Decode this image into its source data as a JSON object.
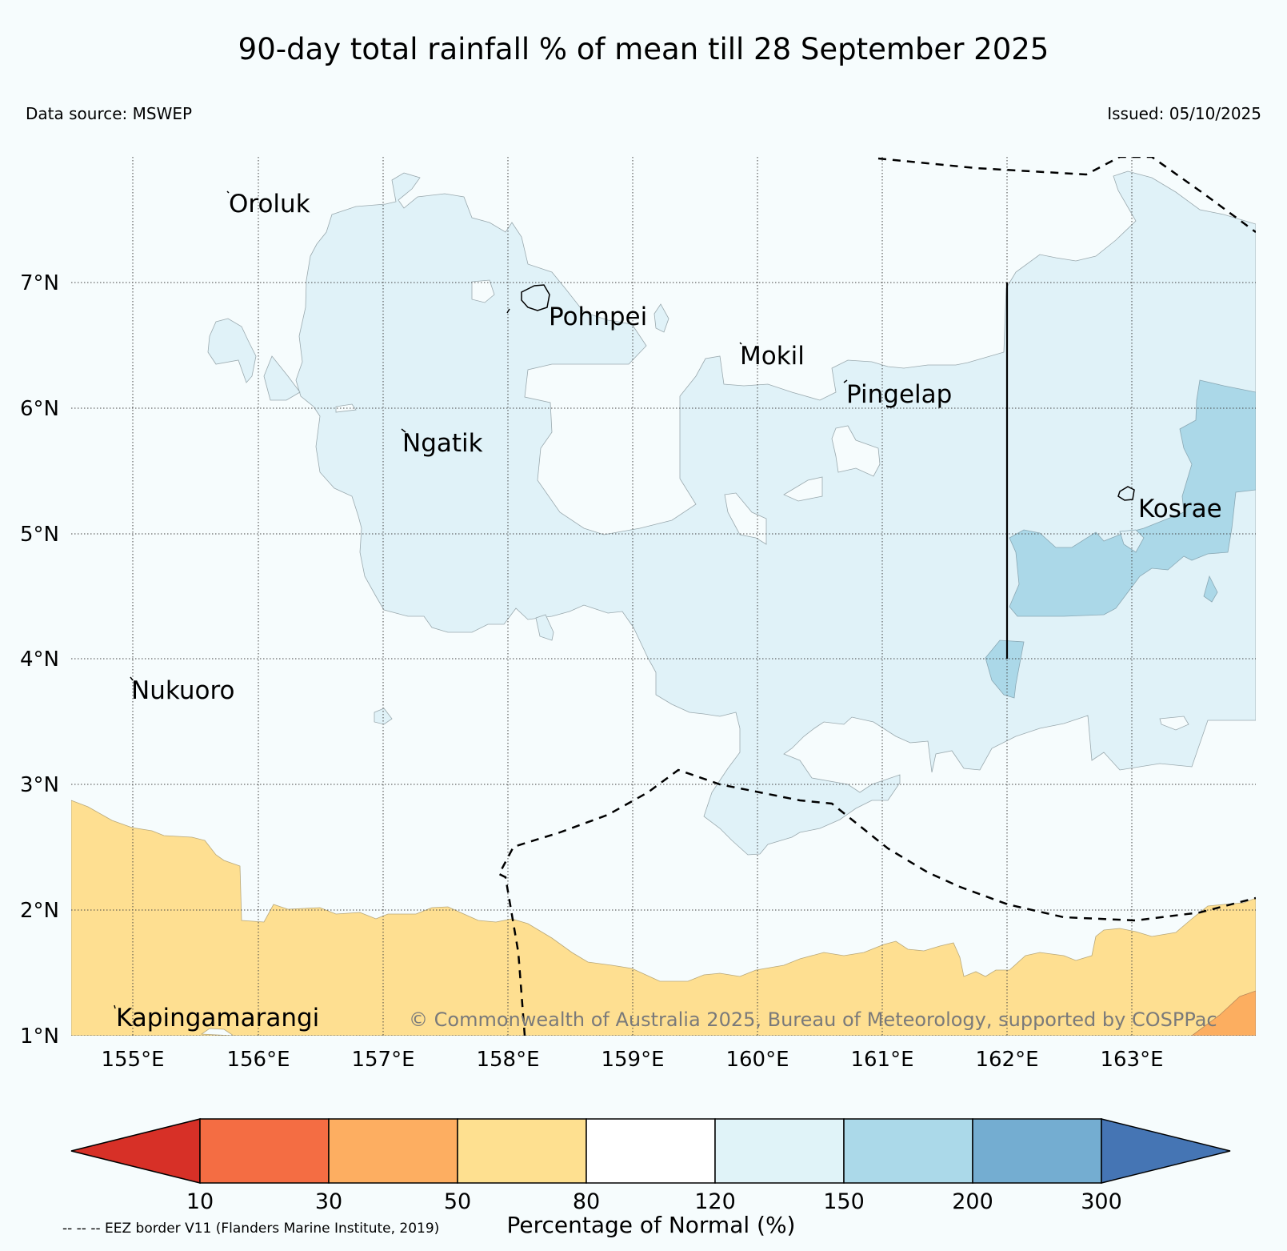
{
  "header": {
    "title": "90-day total rainfall % of mean till 28 September 2025",
    "data_source": "Data source: MSWEP",
    "issued": "Issued: 05/10/2025"
  },
  "map": {
    "lon_labels": [
      "155°E",
      "156°E",
      "157°E",
      "158°E",
      "159°E",
      "160°E",
      "161°E",
      "162°E",
      "163°E"
    ],
    "lat_labels": [
      "7°N",
      "6°N",
      "5°N",
      "4°N",
      "3°N",
      "2°N",
      "1°N"
    ],
    "place_labels": {
      "oroluk": "Oroluk",
      "pohnpei": "Pohnpei",
      "mokil": "Mokil",
      "pingelap": "Pingelap",
      "ngatik": "Ngatik",
      "kosrae": "Kosrae",
      "nukuoro": "Nukuoro",
      "kapingamarangi": "Kapingamarangi"
    },
    "copyright": "© Commonwealth of Australia 2025, Bureau of Meteorology, supported by COSPPac",
    "region_colors": {
      "50_80": "#fedf91",
      "30_50": "#fcae60",
      "80_120": "#f6fcfd",
      "120_150": "#e0f2f8",
      "150_200": "#abd8e8"
    }
  },
  "legend": {
    "title": "Percentage of Normal (%)",
    "ticks": [
      "10",
      "30",
      "50",
      "80",
      "120",
      "150",
      "200",
      "300"
    ],
    "colors": [
      "#d73027",
      "#f46d43",
      "#fdae61",
      "#fee090",
      "#ffffff",
      "#e0f3f8",
      "#abd9e9",
      "#74add1",
      "#4575b4"
    ],
    "eez_note": "-- -- -- EEZ border V11 (Flanders Marine Institute, 2019)"
  }
}
